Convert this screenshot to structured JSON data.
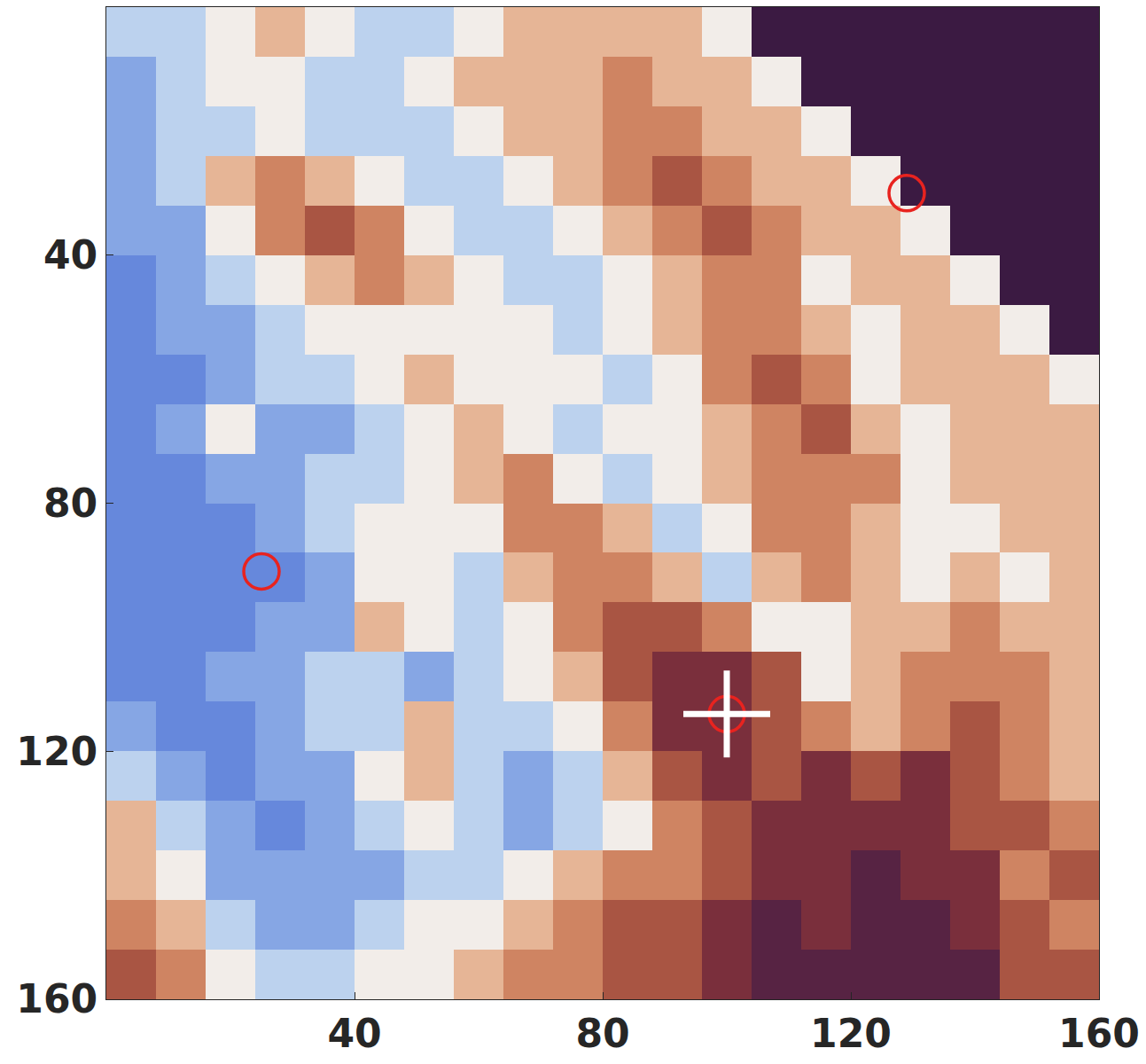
{
  "chart_data": {
    "type": "heatmap",
    "x": [
      4,
      12,
      20,
      28,
      36,
      44,
      52,
      60,
      68,
      76,
      84,
      92,
      100,
      108,
      116,
      124,
      132,
      140,
      148,
      156
    ],
    "y": [
      4,
      12,
      20,
      28,
      36,
      44,
      52,
      60,
      68,
      76,
      84,
      92,
      100,
      108,
      116,
      124,
      132,
      140,
      148,
      156
    ],
    "z": [
      [
        3,
        3,
        4,
        5,
        4,
        3,
        3,
        4,
        5,
        5,
        5,
        5,
        4,
        10,
        10,
        10,
        10,
        10,
        10,
        10
      ],
      [
        2,
        3,
        4,
        4,
        3,
        3,
        4,
        5,
        5,
        5,
        6,
        5,
        5,
        4,
        10,
        10,
        10,
        10,
        10,
        10
      ],
      [
        2,
        3,
        3,
        4,
        3,
        3,
        3,
        4,
        5,
        5,
        6,
        6,
        5,
        5,
        4,
        10,
        10,
        10,
        10,
        10
      ],
      [
        2,
        3,
        5,
        6,
        5,
        4,
        3,
        3,
        4,
        5,
        6,
        7,
        6,
        5,
        5,
        4,
        10,
        10,
        10,
        10
      ],
      [
        2,
        2,
        4,
        6,
        7,
        6,
        4,
        3,
        3,
        4,
        5,
        6,
        7,
        6,
        5,
        5,
        4,
        10,
        10,
        10
      ],
      [
        1,
        2,
        3,
        4,
        5,
        6,
        5,
        4,
        3,
        3,
        4,
        5,
        6,
        6,
        4,
        5,
        5,
        4,
        10,
        10
      ],
      [
        1,
        2,
        2,
        3,
        4,
        4,
        4,
        4,
        4,
        3,
        4,
        5,
        6,
        6,
        5,
        4,
        5,
        5,
        4,
        10
      ],
      [
        1,
        1,
        2,
        3,
        3,
        4,
        5,
        4,
        4,
        4,
        3,
        4,
        6,
        7,
        6,
        4,
        5,
        5,
        5,
        4
      ],
      [
        1,
        2,
        4,
        2,
        2,
        3,
        4,
        5,
        4,
        3,
        4,
        4,
        5,
        6,
        7,
        5,
        4,
        5,
        5,
        5
      ],
      [
        1,
        1,
        2,
        2,
        3,
        3,
        4,
        5,
        6,
        4,
        3,
        4,
        5,
        6,
        6,
        6,
        4,
        5,
        5,
        5
      ],
      [
        1,
        1,
        1,
        2,
        3,
        4,
        4,
        4,
        6,
        6,
        5,
        3,
        4,
        6,
        6,
        5,
        4,
        4,
        5,
        5
      ],
      [
        1,
        1,
        1,
        1,
        2,
        4,
        4,
        3,
        5,
        6,
        6,
        5,
        3,
        5,
        6,
        5,
        4,
        5,
        4,
        5
      ],
      [
        1,
        1,
        1,
        2,
        2,
        5,
        4,
        3,
        4,
        6,
        7,
        7,
        6,
        4,
        4,
        5,
        5,
        6,
        5,
        5
      ],
      [
        1,
        1,
        2,
        2,
        3,
        3,
        2,
        3,
        4,
        5,
        7,
        8,
        8,
        7,
        4,
        5,
        6,
        6,
        6,
        5
      ],
      [
        2,
        1,
        1,
        2,
        3,
        3,
        5,
        3,
        3,
        4,
        6,
        8,
        8,
        7,
        6,
        5,
        6,
        7,
        6,
        5
      ],
      [
        3,
        2,
        1,
        2,
        2,
        4,
        5,
        3,
        2,
        3,
        5,
        7,
        8,
        7,
        8,
        7,
        8,
        7,
        6,
        5
      ],
      [
        5,
        3,
        2,
        1,
        2,
        3,
        4,
        3,
        2,
        3,
        4,
        6,
        7,
        8,
        8,
        8,
        8,
        7,
        7,
        6
      ],
      [
        5,
        4,
        2,
        2,
        2,
        2,
        3,
        3,
        4,
        5,
        6,
        6,
        7,
        8,
        8,
        9,
        8,
        8,
        6,
        7
      ],
      [
        6,
        5,
        3,
        2,
        2,
        3,
        4,
        4,
        5,
        6,
        7,
        7,
        8,
        9,
        8,
        9,
        9,
        8,
        7,
        6
      ],
      [
        7,
        6,
        4,
        3,
        3,
        4,
        4,
        5,
        6,
        6,
        7,
        7,
        8,
        9,
        9,
        9,
        9,
        9,
        7,
        7
      ]
    ],
    "zlim": [
      0,
      10
    ],
    "xlim": [
      0,
      160
    ],
    "ylim": [
      160,
      0
    ],
    "xticks": [
      40,
      80,
      120,
      160
    ],
    "yticks": [
      40,
      80,
      120,
      160
    ],
    "series": [
      {
        "type": "scatter",
        "marker": "circle-open",
        "color": "#e8231f",
        "x": [
          129,
          25,
          100
        ],
        "y": [
          30,
          91,
          114
        ]
      },
      {
        "type": "scatter",
        "marker": "cross-thin-open",
        "color": "#ffffff",
        "x": [
          100
        ],
        "y": [
          114
        ]
      }
    ]
  }
}
